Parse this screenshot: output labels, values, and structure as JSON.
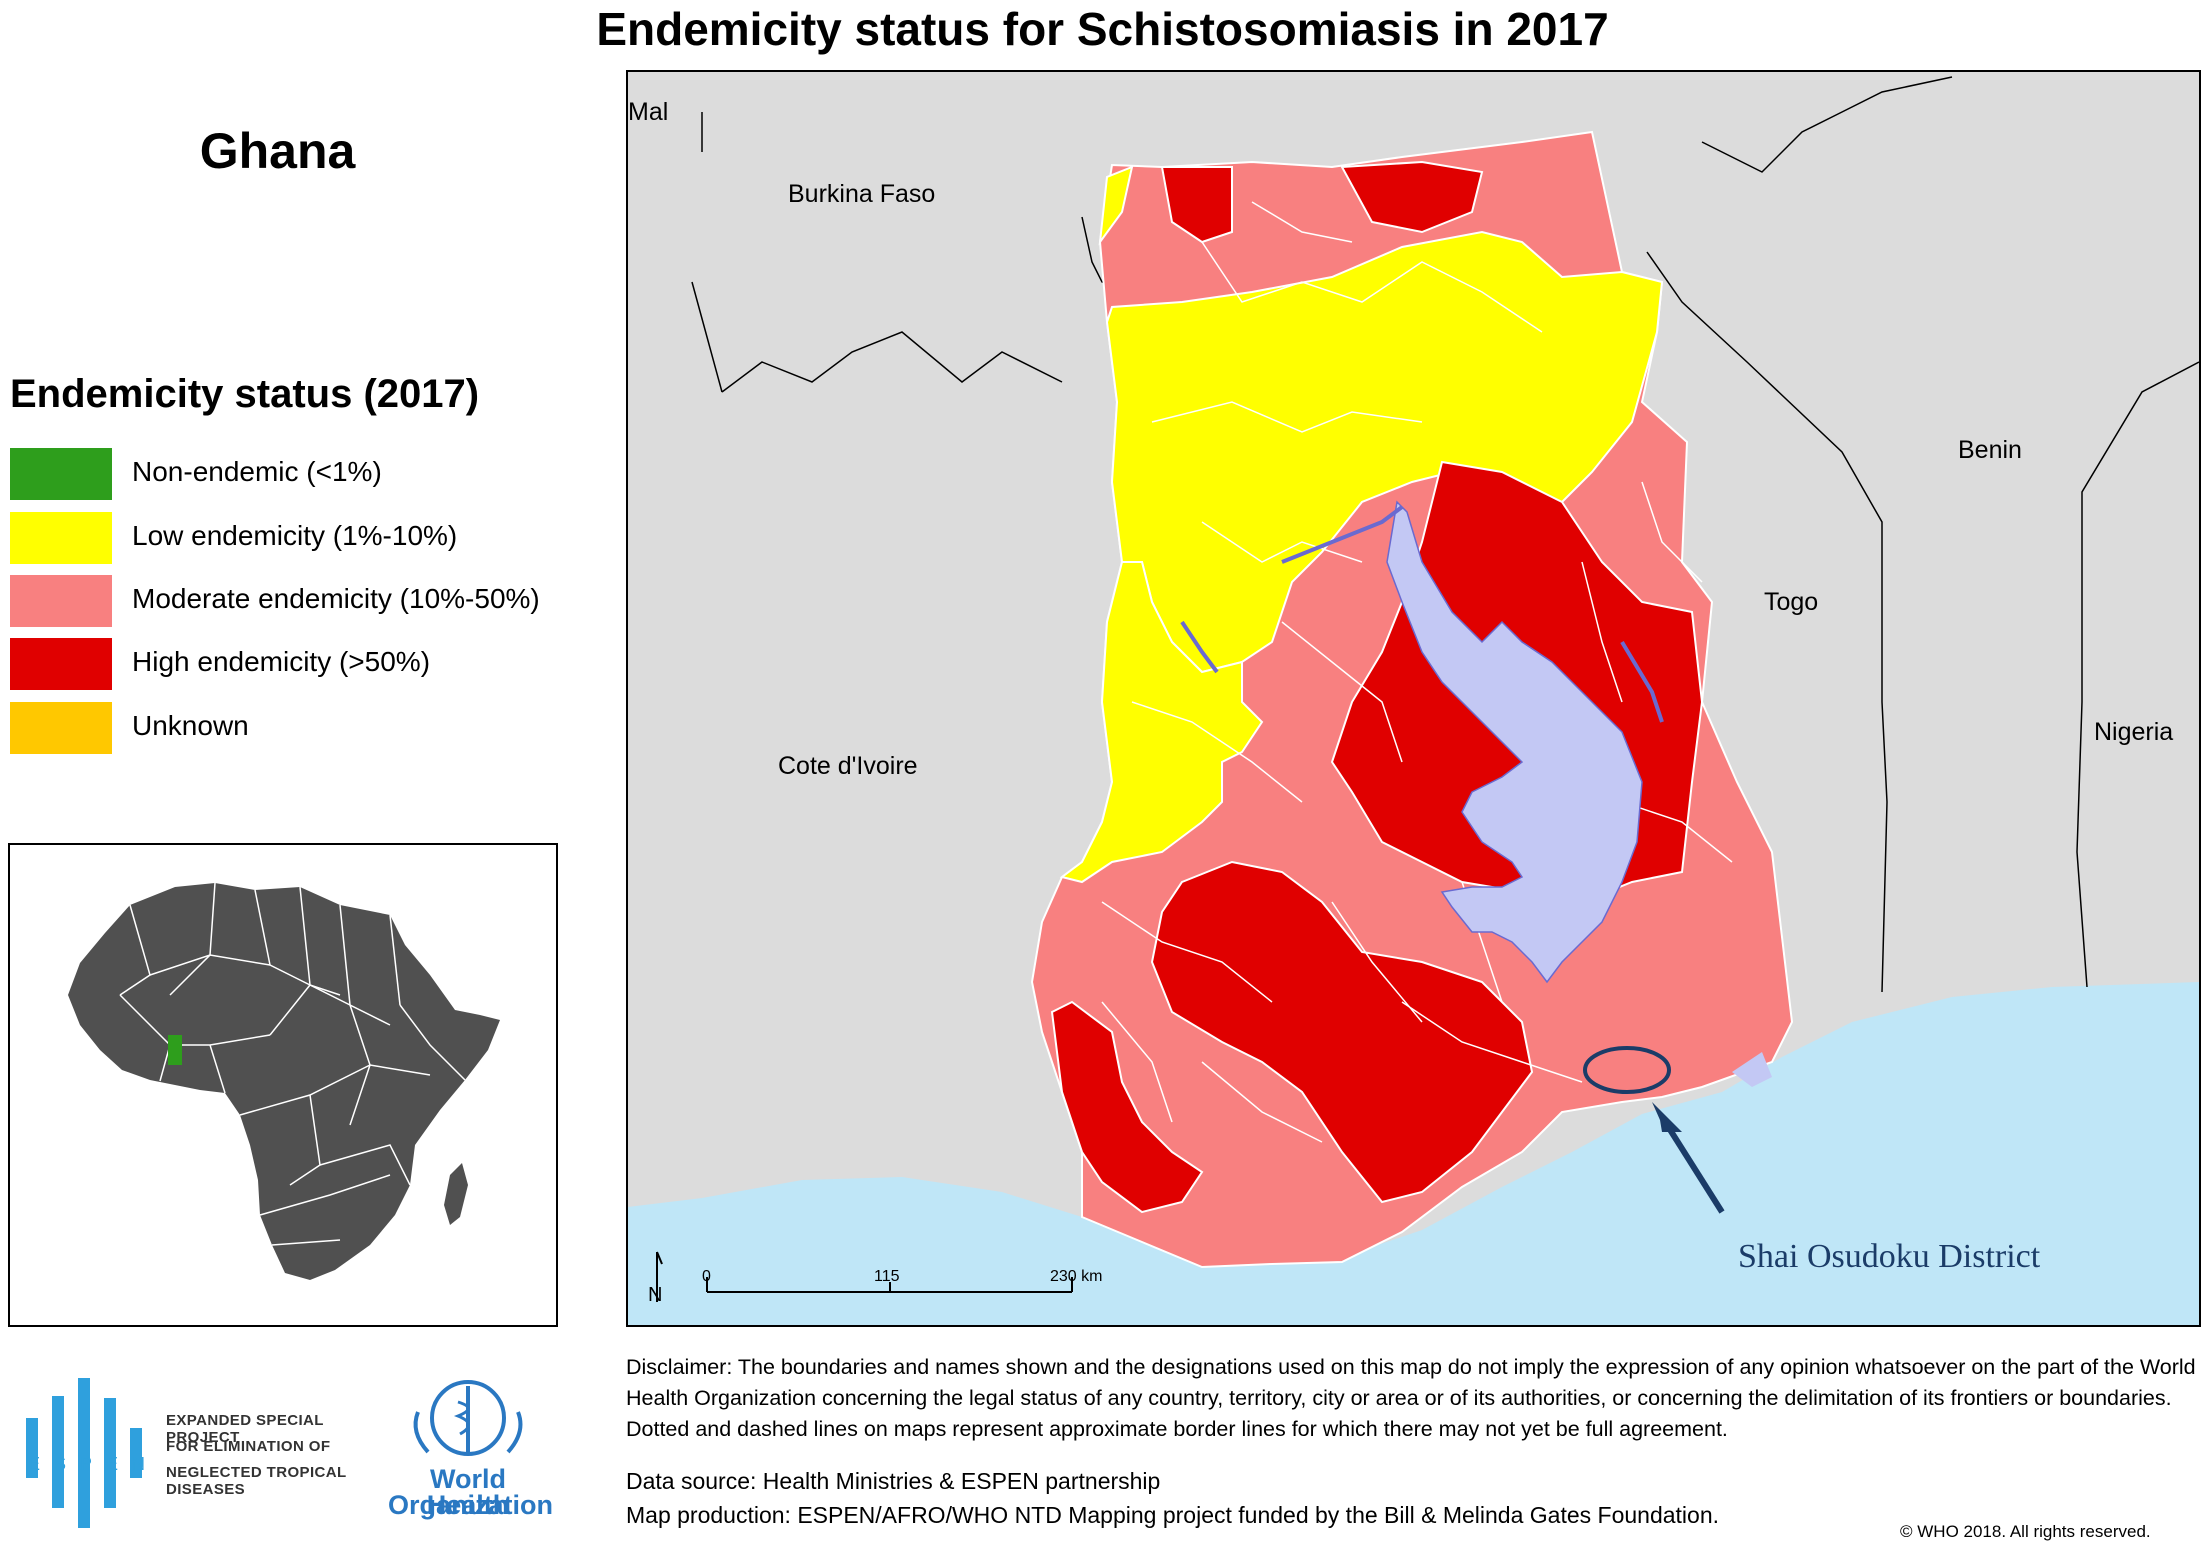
{
  "title": "Endemicity status for Schistosomiasis in 2017",
  "country_name": "Ghana",
  "legend": {
    "title": "Endemicity status (2017)",
    "items": [
      {
        "label": "Non-endemic (<1%)",
        "color": "#2e9e1c"
      },
      {
        "label": "Low endemicity (1%-10%)",
        "color": "#ffff00"
      },
      {
        "label": "Moderate endemicity (10%-50%)",
        "color": "#f88080"
      },
      {
        "label": "High endemicity (>50%)",
        "color": "#e00000"
      },
      {
        "label": "Unknown",
        "color": "#ffc800"
      }
    ]
  },
  "map": {
    "neighbor_labels": {
      "mali": "Mal",
      "burkina": "Burkina Faso",
      "benin": "Benin",
      "togo": "Togo",
      "ivoire": "Cote d'Ivoire",
      "nigeria": "Nigeria"
    },
    "scale_bar": {
      "tick0": "0",
      "tick1": "115",
      "tick2": "230 km"
    },
    "north_label": "N",
    "annotation": "Shai Osudoku District",
    "colors": {
      "land": "#dcdcdc",
      "sea": "#bfe6f7",
      "lake": "#c3c8f4",
      "annotation": "#1b3c68"
    }
  },
  "inset": {
    "highlight_color": "#2e9e1c",
    "africa_color": "#505050"
  },
  "disclaimer": "Disclaimer: The boundaries and names shown and the designations used on this map do not imply the expression of any opinion whatsoever on the part  of the World Health Organization concerning the legal status of any country, territory, city or area or of its  authorities, or concerning the delimitation of its frontiers or boundaries. Dotted and dashed lines on maps represent approximate border lines for which there may not yet be full agreement.",
  "data_source": "Data source: Health Ministries & ESPEN partnership",
  "map_production": "Map production: ESPEN/AFRO/WHO NTD Mapping project funded by the Bill & Melinda Gates Foundation.",
  "copyright": "© WHO 2018. All rights reserved.",
  "logos": {
    "espen_letters": [
      "E",
      "S",
      "P",
      "E",
      "N"
    ],
    "espen_lines": [
      "EXPANDED SPECIAL PROJECT",
      "FOR ELIMINATION OF",
      "NEGLECTED TROPICAL DISEASES"
    ],
    "who_lines": [
      "World Health",
      "Organization"
    ]
  }
}
